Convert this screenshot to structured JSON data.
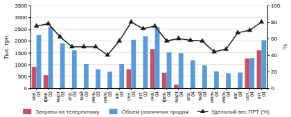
{
  "chart_data": {
    "type": "bar",
    "categories": [
      "янв.\n03",
      "фев.\n03",
      "март\n03",
      "апр.\n03",
      "май\n03",
      "июнь\n03",
      "июль\n03",
      "авг.\n03",
      "сен.\n03",
      "окт.\n03",
      "янв.\n04",
      "фев.\n04",
      "март\n04",
      "апр.\n04",
      "май\n04",
      "июнь\n04",
      "июль\n04",
      "авг.\n04",
      "сен.\n04",
      "окт.\n04"
    ],
    "series": [
      {
        "name": "Затраты на телерекламу",
        "color": "#c0536a",
        "values": [
          900,
          550,
          0,
          0,
          0,
          0,
          0,
          0,
          800,
          0,
          1650,
          650,
          150,
          0,
          0,
          0,
          0,
          0,
          1250,
          1600
        ]
      },
      {
        "name": "Объем розничных продаж",
        "color": "#5b9bd5",
        "values": [
          2250,
          2600,
          1900,
          1600,
          1020,
          800,
          700,
          1020,
          2050,
          2200,
          2600,
          1520,
          1480,
          1180,
          960,
          710,
          630,
          660,
          1280,
          2030
        ]
      },
      {
        "name": "Удельный вес ПРТ (%)",
        "type": "line",
        "axis": "y2",
        "color": "#1a1a1a",
        "marker": "triangle",
        "values": [
          75,
          78,
          62,
          50,
          50,
          50,
          40,
          57,
          80,
          72,
          75,
          57,
          60,
          58,
          57,
          44,
          47,
          67,
          70,
          80
        ]
      }
    ],
    "ylabel": "Тыс. грн.",
    "y2label": "%",
    "ylim": [
      0,
      3500
    ],
    "yticks": [
      0,
      500,
      1000,
      1500,
      2000,
      2500,
      3000,
      3500
    ],
    "y2lim": [
      0,
      100
    ],
    "y2ticks": [
      0,
      20,
      40,
      60,
      80,
      100
    ],
    "grid": true,
    "legend": "bottom"
  }
}
